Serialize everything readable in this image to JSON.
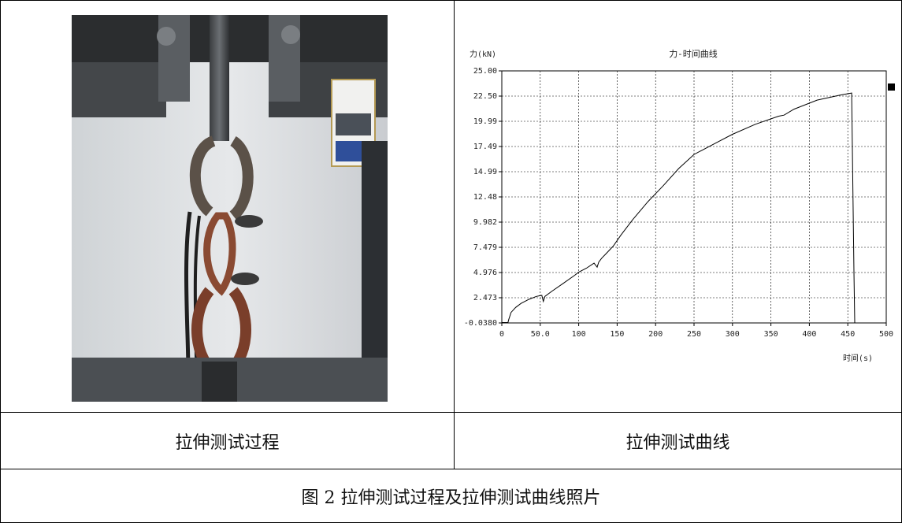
{
  "captions": {
    "left": "拉伸测试过程",
    "right": "拉伸测试曲线",
    "figure": "图 2 拉伸测试过程及拉伸测试曲线照片"
  },
  "photo": {
    "icon": "tensile-test-photo"
  },
  "chart_data": {
    "type": "line",
    "title": "力-时间曲线",
    "ylabel": "力(kN)",
    "xlabel": "时间(s)",
    "x_ticks": [
      "0",
      "50.0",
      "100",
      "150",
      "200",
      "250",
      "300",
      "350",
      "400",
      "450",
      "500"
    ],
    "y_ticks": [
      "-0.0380",
      "2.473",
      "4.976",
      "7.479",
      "9.982",
      "12.48",
      "14.99",
      "17.49",
      "19.99",
      "22.50",
      "25.00"
    ],
    "xlim": [
      0,
      500
    ],
    "ylim": [
      -0.038,
      25.0
    ],
    "grid": true,
    "series": [
      {
        "color": "#000000",
        "x": [
          0,
          8,
          9,
          12,
          18,
          25,
          35,
          45,
          52,
          54,
          56,
          65,
          80,
          95,
          100,
          110,
          120,
          124,
          126,
          130,
          135,
          145,
          155,
          170,
          190,
          210,
          230,
          250,
          265,
          280,
          300,
          330,
          360,
          367,
          380,
          410,
          440,
          455,
          458,
          459
        ],
        "y": [
          0.0,
          0.0,
          0.3,
          1.0,
          1.5,
          1.9,
          2.3,
          2.6,
          2.7,
          2.1,
          2.6,
          3.1,
          3.9,
          4.7,
          5.0,
          5.4,
          5.9,
          5.5,
          6.0,
          6.4,
          6.8,
          7.6,
          8.7,
          10.2,
          12.0,
          13.6,
          15.3,
          16.7,
          17.3,
          17.9,
          18.7,
          19.7,
          20.5,
          20.6,
          21.2,
          22.1,
          22.6,
          22.8,
          5.0,
          0.0
        ]
      }
    ]
  }
}
